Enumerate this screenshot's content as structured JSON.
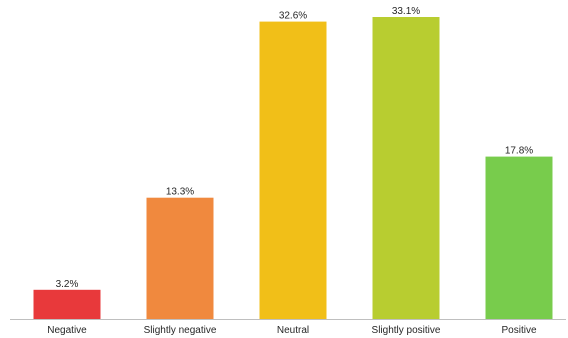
{
  "chart_data": {
    "type": "bar",
    "title": "",
    "xlabel": "",
    "ylabel": "",
    "categories": [
      "Negative",
      "Slightly negative",
      "Neutral",
      "Slightly positive",
      "Positive"
    ],
    "values": [
      3.2,
      13.3,
      32.6,
      33.1,
      17.8
    ],
    "value_labels": [
      "3.2%",
      "13.3%",
      "32.6%",
      "33.1%",
      "17.8%"
    ],
    "colors": [
      "#e8393b",
      "#f0893e",
      "#f1bf18",
      "#b8cd30",
      "#78cc4c"
    ],
    "ylim": [
      0,
      33.1
    ],
    "grid": false,
    "legend": "none",
    "y_axis_visible": false
  }
}
